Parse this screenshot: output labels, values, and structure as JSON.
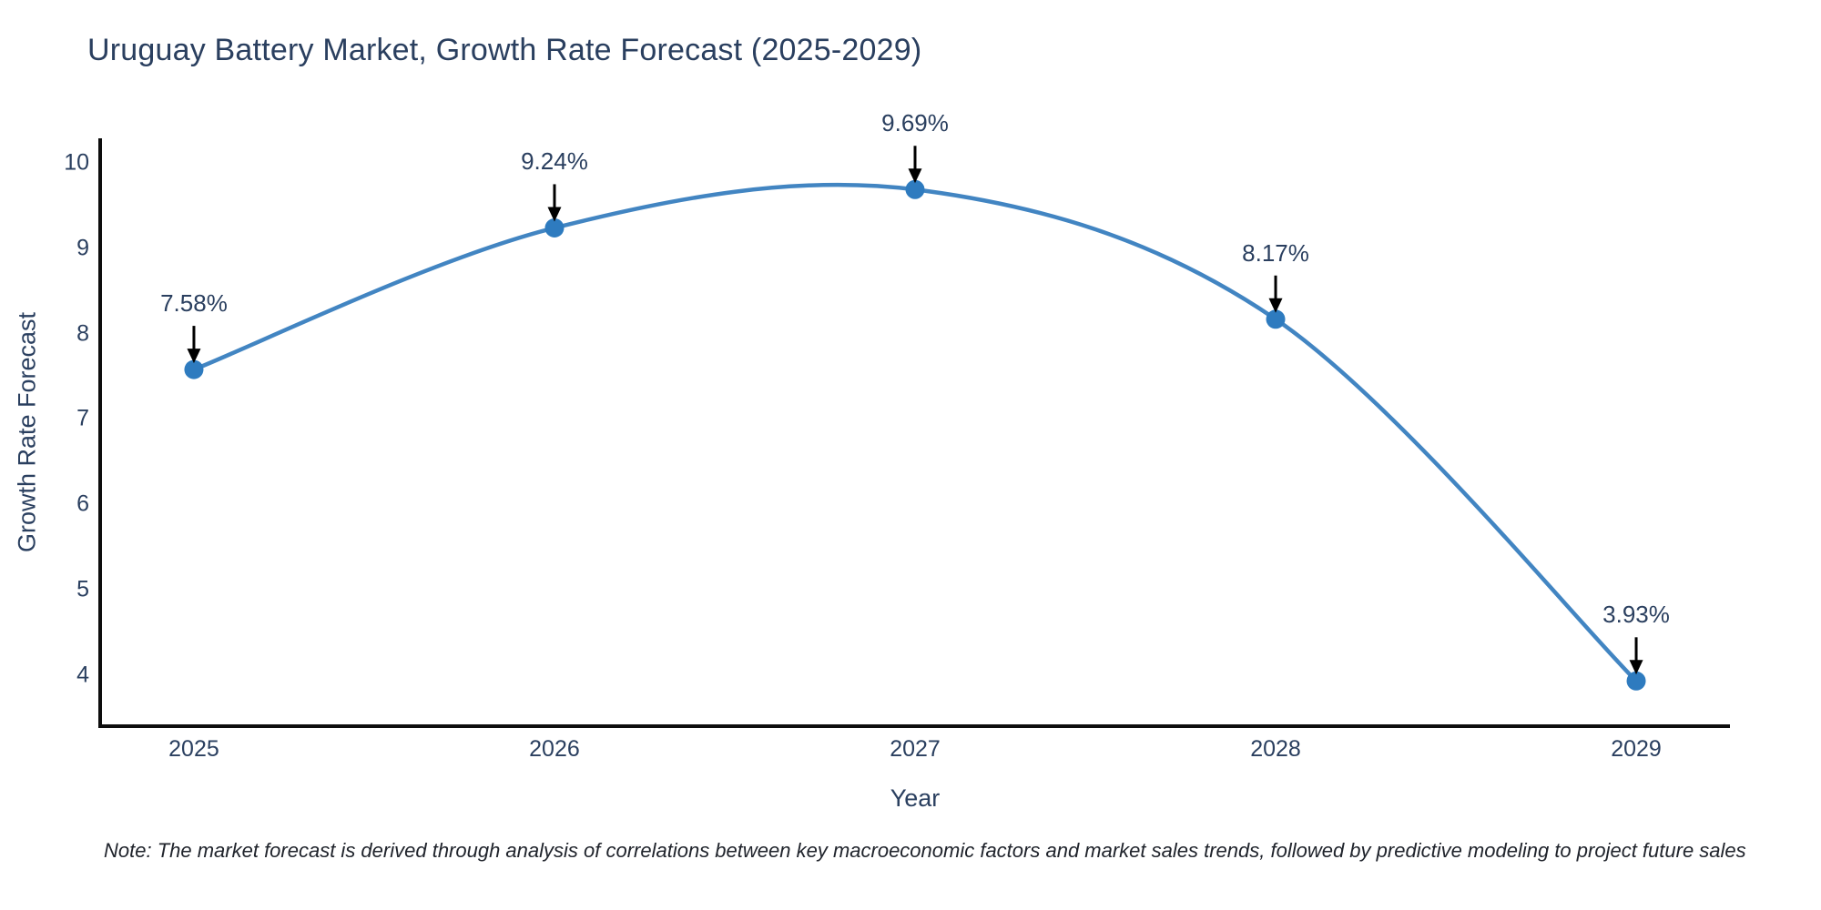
{
  "chart_data": {
    "type": "line",
    "line_shape": "spline",
    "title": "Uruguay Battery Market, Growth Rate Forecast (2025-2029)",
    "xlabel": "Year",
    "ylabel": "Growth Rate Forecast",
    "x": [
      2025,
      2026,
      2027,
      2028,
      2029
    ],
    "values": [
      7.58,
      9.24,
      9.69,
      8.17,
      3.93
    ],
    "point_labels": [
      "7.58%",
      "9.24%",
      "9.69%",
      "8.17%",
      "3.93%"
    ],
    "xticks": [
      2025,
      2026,
      2027,
      2028,
      2029
    ],
    "yticks": [
      4,
      5,
      6,
      7,
      8,
      9,
      10
    ],
    "xlim": [
      2024.74,
      2029.26
    ],
    "ylim": [
      3.4,
      10.29
    ],
    "grid": false,
    "legend": "none",
    "colors": {
      "line": "#4285c2",
      "marker": "#2e7bbf",
      "axis": "#0d0d0d",
      "arrow": "#000000",
      "text": "#2a3f5f",
      "note": "#20242c",
      "background": "#ffffff"
    }
  },
  "footnote": "Note: The market forecast is derived through analysis of correlations between key macroeconomic factors and market sales trends, followed by predictive modeling to project future sales"
}
